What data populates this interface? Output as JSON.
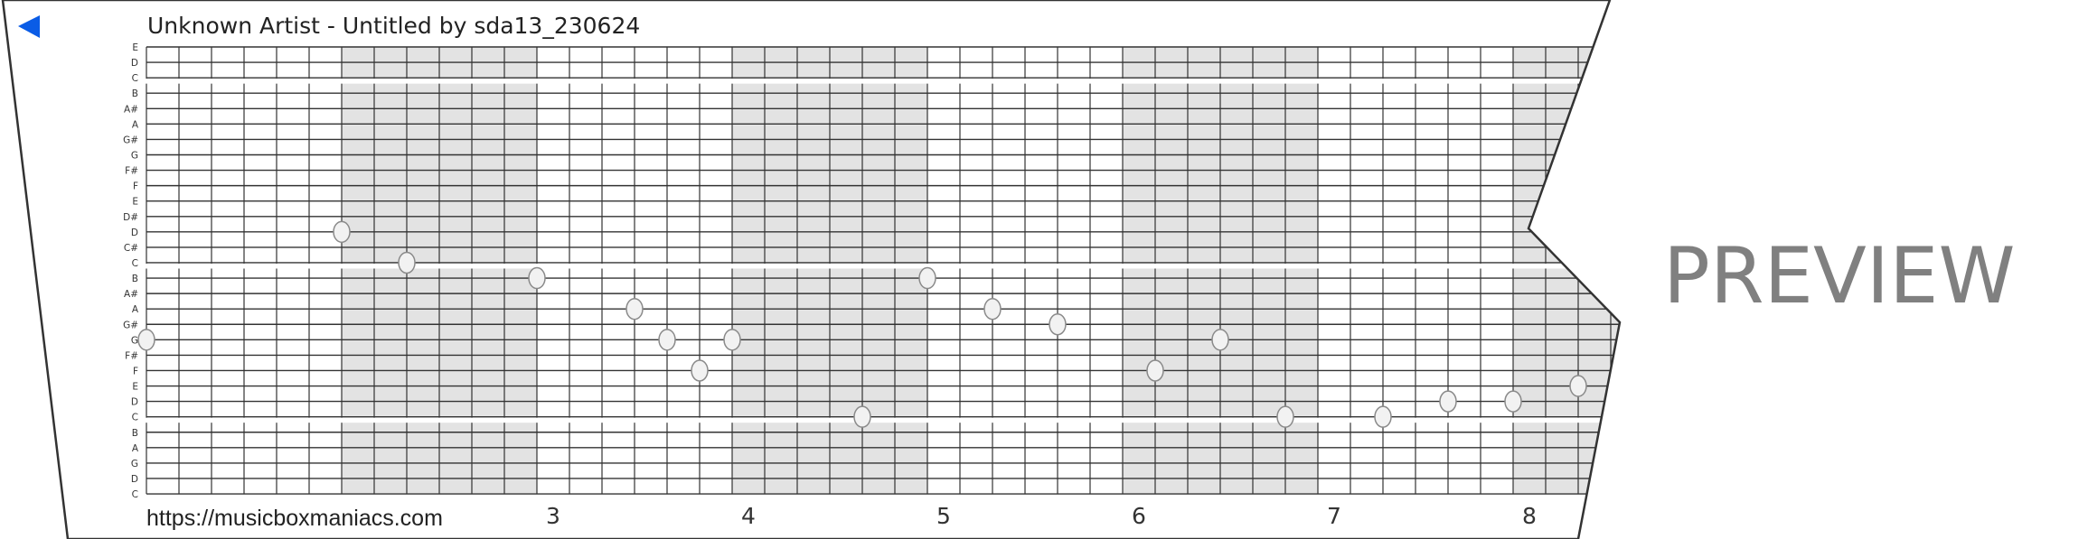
{
  "header": {
    "back_icon": "blue-left-triangle-icon",
    "title": "Unknown Artist - Untitled by sda13_230624"
  },
  "grid": {
    "row_labels": [
      "E",
      "D",
      "C",
      "B",
      "A#",
      "A",
      "G#",
      "G",
      "F#",
      "F",
      "E",
      "D#",
      "D",
      "C#",
      "C",
      "B",
      "A#",
      "A",
      "G#",
      "G",
      "F#",
      "F",
      "E",
      "D",
      "C",
      "B",
      "A",
      "G",
      "D",
      "C"
    ],
    "columns": 47,
    "shade_pattern": "6 white / 6 shaded columns",
    "colors": {
      "lines": "#333333",
      "shade": "#e3e3e3",
      "note_fill": "#f2f2f2",
      "note_stroke": "#8a8a8a",
      "back_arrow": "#0a5ce6",
      "preview": "#808080"
    }
  },
  "notes": [
    {
      "step": 0,
      "row": 19,
      "pitch": "G"
    },
    {
      "step": 6,
      "row": 12,
      "pitch": "D"
    },
    {
      "step": 8,
      "row": 14,
      "pitch": "C"
    },
    {
      "step": 12,
      "row": 15,
      "pitch": "B"
    },
    {
      "step": 15,
      "row": 17,
      "pitch": "A"
    },
    {
      "step": 16,
      "row": 19,
      "pitch": "G"
    },
    {
      "step": 17,
      "row": 21,
      "pitch": "F"
    },
    {
      "step": 18,
      "row": 19,
      "pitch": "G"
    },
    {
      "step": 22,
      "row": 24,
      "pitch": "C"
    },
    {
      "step": 24,
      "row": 15,
      "pitch": "B"
    },
    {
      "step": 26,
      "row": 17,
      "pitch": "A"
    },
    {
      "step": 28,
      "row": 18,
      "pitch": "G#"
    },
    {
      "step": 31,
      "row": 21,
      "pitch": "F"
    },
    {
      "step": 33,
      "row": 19,
      "pitch": "G"
    },
    {
      "step": 35,
      "row": 24,
      "pitch": "C"
    },
    {
      "step": 38,
      "row": 24,
      "pitch": "C"
    },
    {
      "step": 40,
      "row": 23,
      "pitch": "D"
    },
    {
      "step": 42,
      "row": 23,
      "pitch": "D"
    },
    {
      "step": 44,
      "row": 22,
      "pitch": "E"
    }
  ],
  "footer": {
    "url": "https://musicboxmaniacs.com",
    "measures": [
      "3",
      "4",
      "5",
      "6",
      "7",
      "8"
    ]
  },
  "watermark": "PREVIEW"
}
